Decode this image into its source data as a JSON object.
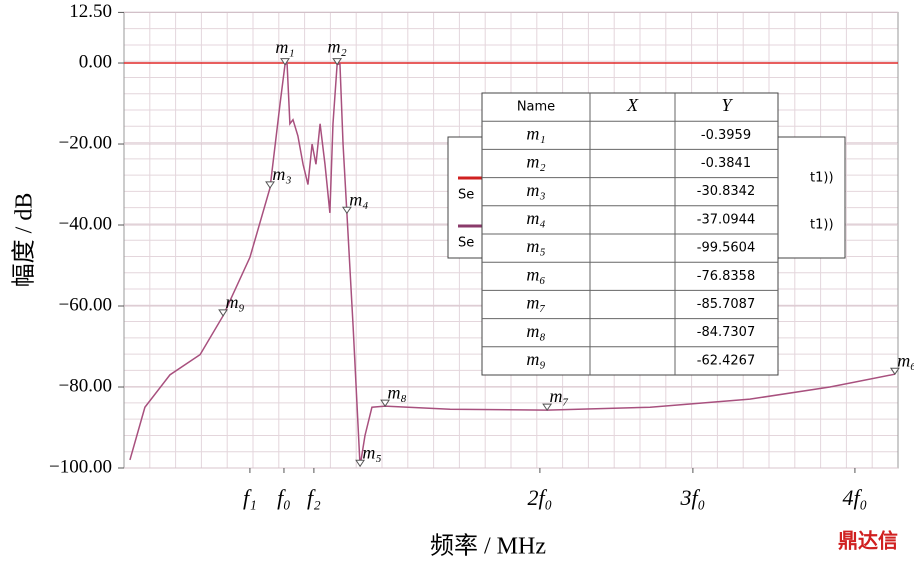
{
  "chart_data": {
    "type": "line",
    "ylabel": "幅度 / dB",
    "xlabel": "频率 / MHz",
    "xlim": [
      0,
      30
    ],
    "ylim": [
      -100,
      12.5
    ],
    "yticks": [
      {
        "value": 12.5,
        "label": "12.50"
      },
      {
        "value": 0,
        "label": "0.00"
      },
      {
        "value": -20,
        "label": "−20.00"
      },
      {
        "value": -40,
        "label": "−40.00"
      },
      {
        "value": -60,
        "label": "−60.00"
      },
      {
        "value": -80,
        "label": "−80.00"
      },
      {
        "value": -100,
        "label": "−100.00"
      }
    ],
    "xticks": [
      {
        "value": 4.88,
        "label": "f₁"
      },
      {
        "value": 6.2,
        "label": "f₀"
      },
      {
        "value": 7.36,
        "label": "f₂"
      },
      {
        "value": 16.12,
        "label": "2f₀"
      },
      {
        "value": 22.05,
        "label": "3f₀"
      },
      {
        "value": 28.33,
        "label": "4f₀"
      }
    ],
    "grid": true,
    "series": [
      {
        "color": "#e02828",
        "x": [
          0,
          30
        ],
        "values": [
          0,
          0
        ]
      },
      {
        "color": "#a8507e",
        "x": [
          0.23,
          0.81,
          1.78,
          2.95,
          3.84,
          4.88,
          5.66,
          6.05,
          6.24,
          6.32,
          6.43,
          6.55,
          6.74,
          6.94,
          7.13,
          7.29,
          7.44,
          7.6,
          7.79,
          7.98,
          8.1,
          8.26,
          8.37,
          8.49,
          8.64,
          8.88,
          9.15,
          9.34,
          9.61,
          10.12,
          12.64,
          16.4,
          20.39,
          24.26,
          27.36,
          29.88
        ],
        "values": [
          -98,
          -85,
          -77,
          -72,
          -62.4267,
          -48,
          -30.8342,
          -10,
          -0.3959,
          0,
          -15,
          -14,
          -18,
          -25,
          -30,
          -20,
          -25,
          -15,
          -25,
          -37,
          -15,
          -0.3841,
          -0.2,
          -20,
          -37.0944,
          -65,
          -99.5604,
          -92,
          -85,
          -84.7307,
          -85.5,
          -85.7087,
          -85,
          -83,
          -80,
          -76.8358
        ]
      }
    ],
    "markers": [
      {
        "name": "m₁",
        "x": 6.24,
        "value": -0.3959
      },
      {
        "name": "m₂",
        "x": 8.26,
        "value": -0.3841
      },
      {
        "name": "m₃",
        "x": 5.66,
        "value": -30.8342
      },
      {
        "name": "m₄",
        "x": 8.64,
        "value": -37.0944
      },
      {
        "name": "m₅",
        "x": 9.15,
        "value": -99.5604
      },
      {
        "name": "m₆",
        "x": 29.88,
        "value": -76.8358
      },
      {
        "name": "m₇",
        "x": 16.4,
        "value": -85.7087
      },
      {
        "name": "m₈",
        "x": 10.12,
        "value": -84.7307
      },
      {
        "name": "m₉",
        "x": 3.84,
        "value": -62.4267
      }
    ],
    "table_columns": [
      "Name",
      "X",
      "Y"
    ],
    "legend_fragments": [
      "Se",
      "Se",
      "t1))",
      "t1))"
    ],
    "watermark": "鼎达信"
  }
}
